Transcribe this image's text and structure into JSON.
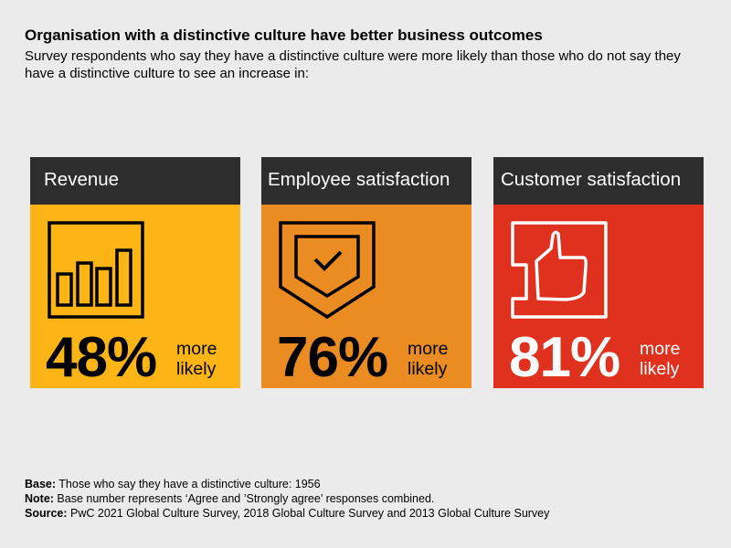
{
  "header": {
    "title": "Organisation with a distinctive culture have better business outcomes",
    "subtitle": "Survey respondents who say they have a distinctive culture were more likely than those who do not say they have a distinctive culture to see an increase in:"
  },
  "cards": [
    {
      "label": "Revenue",
      "value": "48%",
      "suffix_line1": "more",
      "suffix_line2": "likely",
      "icon": "bar-chart-icon",
      "color": "#fdb515",
      "text_color": "#000000"
    },
    {
      "label": "Employee satisfaction",
      "value": "76%",
      "suffix_line1": "more",
      "suffix_line2": "likely",
      "icon": "shield-check-icon",
      "color": "#eb8c22",
      "text_color": "#000000"
    },
    {
      "label": "Customer satisfaction",
      "value": "81%",
      "suffix_line1": "more",
      "suffix_line2": "likely",
      "icon": "thumbs-up-icon",
      "color": "#e0301e",
      "text_color": "#ffffff"
    }
  ],
  "footer": {
    "base_label": "Base:",
    "base_text": " Those who say they have a distinctive culture: 1956",
    "note_label": "Note:",
    "note_text": " Base number represents ‘Agree and ’Strongly agree’ responses combined.",
    "source_label": "Source:",
    "source_text": " PwC 2021 Global Culture Survey, 2018 Global Culture Survey and 2013 Global Culture Survey"
  }
}
